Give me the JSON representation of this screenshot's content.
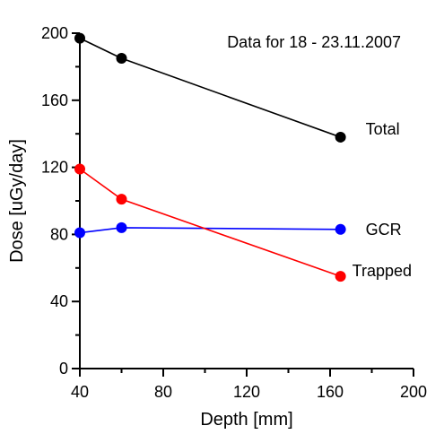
{
  "chart_data": {
    "type": "line",
    "annotation": "Data for 18 - 23.11.2007",
    "xlabel": "Depth [mm]",
    "ylabel": "Dose  [uGy/day]",
    "xlim": [
      40,
      200
    ],
    "ylim": [
      0,
      200
    ],
    "x_ticks": [
      40,
      80,
      120,
      160,
      200
    ],
    "y_ticks": [
      0,
      40,
      80,
      120,
      160,
      200
    ],
    "x_minor_step": 20,
    "y_minor_step": 20,
    "grid": false,
    "legend": "labels beside line ends",
    "series": [
      {
        "name": "Total",
        "color": "#000000",
        "x": [
          40,
          60,
          165
        ],
        "y": [
          197,
          185,
          138
        ]
      },
      {
        "name": "GCR",
        "color": "#0000ff",
        "x": [
          40,
          60,
          165
        ],
        "y": [
          81,
          84,
          83
        ]
      },
      {
        "name": "Trapped",
        "color": "#ff0000",
        "x": [
          40,
          60,
          165
        ],
        "y": [
          119,
          101,
          55
        ]
      }
    ]
  }
}
